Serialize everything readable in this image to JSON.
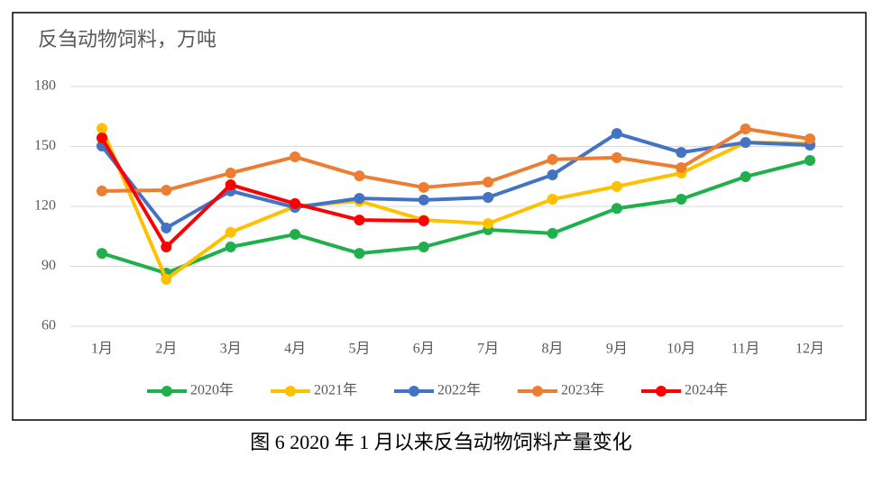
{
  "chart_data": {
    "type": "line",
    "title": "反刍动物饲料，万吨",
    "caption": "图 6  2020 年 1 月以来反刍动物饲料产量变化",
    "categories": [
      "1月",
      "2月",
      "3月",
      "4月",
      "5月",
      "6月",
      "7月",
      "8月",
      "9月",
      "10月",
      "11月",
      "12月"
    ],
    "series": [
      {
        "name": "2020年",
        "color": "#1fb04c",
        "values": [
          96.5,
          86.6,
          99.7,
          106,
          96.5,
          99.7,
          108.3,
          106.5,
          119,
          123.6,
          134.9,
          143
        ]
      },
      {
        "name": "2021年",
        "color": "#ffc000",
        "values": [
          159,
          83.5,
          107,
          120,
          122.7,
          113.2,
          111.4,
          123.6,
          130,
          136.7,
          152,
          151.6
        ]
      },
      {
        "name": "2022年",
        "color": "#4472c4",
        "values": [
          150.2,
          109.2,
          127.7,
          119.5,
          124,
          123.2,
          124.5,
          135.8,
          156.5,
          147,
          152,
          150.7
        ]
      },
      {
        "name": "2023年",
        "color": "#ed7d31",
        "values": [
          127.7,
          128.1,
          136.7,
          144.8,
          135.3,
          129.5,
          132.2,
          143.5,
          144.4,
          139.4,
          158.8,
          153.8
        ]
      },
      {
        "name": "2024年",
        "color": "#ff0000",
        "values": [
          154.3,
          99.7,
          130.8,
          121.4,
          113.2,
          112.8,
          null,
          null,
          null,
          null,
          null,
          null
        ]
      }
    ],
    "ylim": [
      60,
      180
    ],
    "yticks": [
      60,
      90,
      120,
      150,
      180
    ],
    "grid": true
  }
}
